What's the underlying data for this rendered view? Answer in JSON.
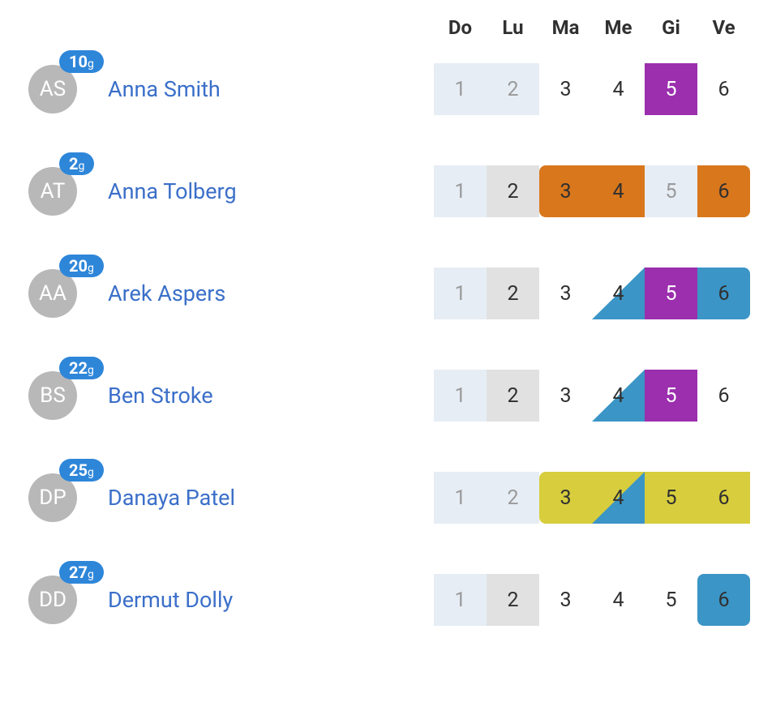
{
  "colors": {
    "pale_blue": "#e6edf5",
    "pale_gray": "#e1e1e1",
    "white": "#ffffff",
    "purple": "#9b2fae",
    "orange": "#d9771c",
    "yellow": "#d7cd3d",
    "blue": "#3b95c6",
    "text_dark": "#303030",
    "text_muted": "#9a9a9a",
    "text_white": "#ffffff",
    "link_blue": "#3b6fc9",
    "avatar_bg": "#b8b8b8",
    "badge_bg": "#2e86d9"
  },
  "header_days": [
    "Do",
    "Lu",
    "Ma",
    "Me",
    "Gi",
    "Ve"
  ],
  "people": [
    {
      "initials": "AS",
      "badge_num": "10",
      "badge_unit": "g",
      "name": "Anna Smith",
      "cells": [
        {
          "day": "1",
          "bg": "pale_blue",
          "txt": "text_muted"
        },
        {
          "day": "2",
          "bg": "pale_blue",
          "txt": "text_muted"
        },
        {
          "day": "3",
          "bg": "white",
          "txt": "text_dark"
        },
        {
          "day": "4",
          "bg": "white",
          "txt": "text_dark"
        },
        {
          "day": "5",
          "bg": "purple",
          "txt": "text_white"
        },
        {
          "day": "6",
          "bg": "white",
          "txt": "text_dark"
        }
      ]
    },
    {
      "initials": "AT",
      "badge_num": "2",
      "badge_unit": "g",
      "name": "Anna Tolberg",
      "cells": [
        {
          "day": "1",
          "bg": "pale_blue",
          "txt": "text_muted"
        },
        {
          "day": "2",
          "bg": "pale_gray",
          "txt": "text_dark"
        },
        {
          "day": "3",
          "bg": "orange",
          "txt": "text_dark",
          "radius_tl": 8,
          "radius_bl": 8
        },
        {
          "day": "4",
          "bg": "orange",
          "txt": "text_dark"
        },
        {
          "day": "5",
          "bg": "pale_blue",
          "txt": "text_muted"
        },
        {
          "day": "6",
          "bg": "orange",
          "txt": "text_dark",
          "radius_tr": 8,
          "radius_br": 8
        }
      ]
    },
    {
      "initials": "AA",
      "badge_num": "20",
      "badge_unit": "g",
      "name": "Arek Aspers",
      "cells": [
        {
          "day": "1",
          "bg": "pale_blue",
          "txt": "text_muted"
        },
        {
          "day": "2",
          "bg": "pale_gray",
          "txt": "text_dark"
        },
        {
          "day": "3",
          "bg": "white",
          "txt": "text_dark"
        },
        {
          "day": "4",
          "bg": "white",
          "txt": "text_dark",
          "triangle": "blue"
        },
        {
          "day": "5",
          "bg": "purple",
          "txt": "text_white"
        },
        {
          "day": "6",
          "bg": "blue",
          "txt": "text_dark",
          "radius_tr": 8,
          "radius_br": 8
        }
      ]
    },
    {
      "initials": "BS",
      "badge_num": "22",
      "badge_unit": "g",
      "name": "Ben Stroke",
      "cells": [
        {
          "day": "1",
          "bg": "pale_blue",
          "txt": "text_muted"
        },
        {
          "day": "2",
          "bg": "pale_gray",
          "txt": "text_dark"
        },
        {
          "day": "3",
          "bg": "white",
          "txt": "text_dark"
        },
        {
          "day": "4",
          "bg": "white",
          "txt": "text_dark",
          "triangle": "blue"
        },
        {
          "day": "5",
          "bg": "purple",
          "txt": "text_white"
        },
        {
          "day": "6",
          "bg": "white",
          "txt": "text_dark"
        }
      ]
    },
    {
      "initials": "DP",
      "badge_num": "25",
      "badge_unit": "g",
      "name": "Danaya Patel",
      "cells": [
        {
          "day": "1",
          "bg": "pale_blue",
          "txt": "text_muted"
        },
        {
          "day": "2",
          "bg": "pale_blue",
          "txt": "text_muted"
        },
        {
          "day": "3",
          "bg": "yellow",
          "txt": "text_dark",
          "radius_tl": 8,
          "radius_bl": 8
        },
        {
          "day": "4",
          "bg": "yellow",
          "txt": "text_dark",
          "triangle": "blue"
        },
        {
          "day": "5",
          "bg": "yellow",
          "txt": "text_dark"
        },
        {
          "day": "6",
          "bg": "yellow",
          "txt": "text_dark"
        }
      ]
    },
    {
      "initials": "DD",
      "badge_num": "27",
      "badge_unit": "g",
      "name": "Dermut Dolly",
      "cells": [
        {
          "day": "1",
          "bg": "pale_blue",
          "txt": "text_muted"
        },
        {
          "day": "2",
          "bg": "pale_gray",
          "txt": "text_dark"
        },
        {
          "day": "3",
          "bg": "white",
          "txt": "text_dark"
        },
        {
          "day": "4",
          "bg": "white",
          "txt": "text_dark"
        },
        {
          "day": "5",
          "bg": "white",
          "txt": "text_dark"
        },
        {
          "day": "6",
          "bg": "blue",
          "txt": "text_dark",
          "radius_tl": 8,
          "radius_bl": 8,
          "radius_tr": 8,
          "radius_br": 8
        }
      ]
    }
  ]
}
